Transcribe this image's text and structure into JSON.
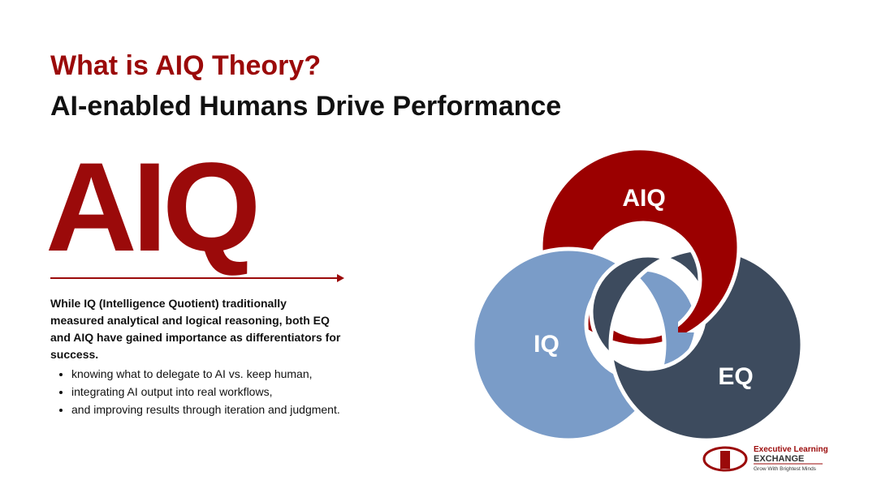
{
  "header": {
    "title": "What is AIQ Theory?",
    "subtitle": "AI-enabled Humans Drive Performance"
  },
  "hero": {
    "word": "AIQ"
  },
  "body": {
    "paragraph": "While IQ (Intelligence Quotient) traditionally measured analytical and logical reasoning, both EQ and AIQ have gained importance as differentiators for success.",
    "bullets": [
      "knowing what to delegate to AI vs. keep human,",
      "integrating AI output into real workflows,",
      "and improving results through iteration and judgment."
    ]
  },
  "diagram": {
    "nodes": [
      {
        "label": "AIQ"
      },
      {
        "label": "IQ"
      },
      {
        "label": "EQ"
      }
    ]
  },
  "logo": {
    "name": "Executive Learning",
    "brand": "EXCHANGE",
    "tagline": "Grow With Brightest Minds"
  }
}
